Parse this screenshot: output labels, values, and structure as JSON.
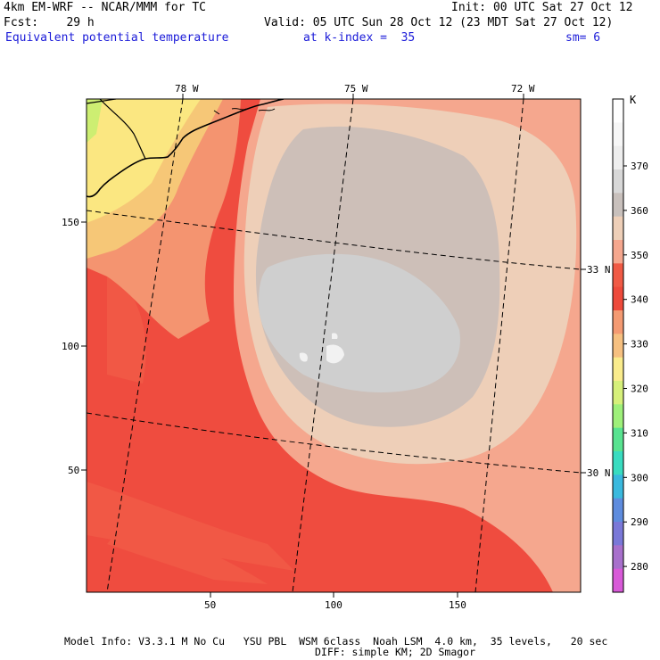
{
  "header": {
    "model_line": "4km EM-WRF -- NCAR/MMM for TC",
    "init_line": "Init: 00 UTC Sat 27 Oct 12",
    "fcst_line": "Fcst:    29 h",
    "valid_line": "Valid: 05 UTC Sun 28 Oct 12 (23 MDT Sat 27 Oct 12)",
    "field_name": "Equivalent potential temperature",
    "kindex_text": "at k-index =  35",
    "smooth_text": "sm= 6",
    "highlight_color": "#1a1ad8"
  },
  "map": {
    "longitude_labels": [
      "78 W",
      "75 W",
      "72 W"
    ],
    "latitude_labels": [
      "33 N",
      "30 N"
    ],
    "grid_x_ticks": [
      "50",
      "100",
      "150"
    ],
    "grid_y_ticks": [
      "150",
      "100",
      "50"
    ],
    "shading_colors": {
      "bg_340": "#ef4c3f",
      "band_330": "#f49470",
      "band_350_outer": "#f5a78e",
      "band_350": "#eecfb8",
      "band_360": "#cdbfb8",
      "band_365": "#cfcfcf",
      "band_370": "#f2f2f2",
      "land_320": "#fbe781",
      "land_325": "#f6c777",
      "land_315": "#cdee72"
    }
  },
  "colorbar": {
    "unit": "K",
    "tick_labels": [
      "370",
      "360",
      "350",
      "340",
      "330",
      "320",
      "310",
      "300",
      "290",
      "280"
    ],
    "colors": [
      "#ffffff",
      "#f7f7f7",
      "#eeeeee",
      "#d8d8d8",
      "#c8c0bc",
      "#eecfb8",
      "#f5a78e",
      "#f05a45",
      "#ee4a3b",
      "#f49a72",
      "#f6c080",
      "#faec8c",
      "#d6f07a",
      "#9ef07a",
      "#58e390",
      "#39dcc0",
      "#3ab9de",
      "#5e8cde",
      "#7a78d8",
      "#a870cc",
      "#d85ad8"
    ]
  },
  "footer": {
    "line1": "Model Info: V3.3.1 M No Cu   YSU PBL  WSM 6class  Noah LSM  4.0 km,  35 levels,   20 sec",
    "line2": "DIFF: simple KM; 2D Smagor"
  }
}
